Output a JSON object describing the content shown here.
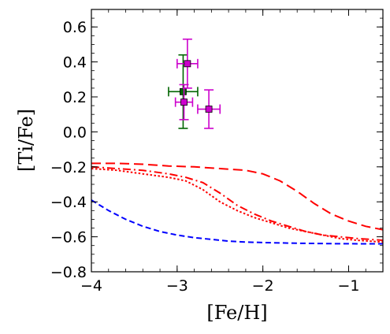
{
  "chart_data": {
    "type": "line",
    "xlabel": "[Fe/H]",
    "ylabel": "[Ti/Fe]",
    "xlim": [
      -4.0,
      -0.6
    ],
    "ylim": [
      -0.8,
      0.7
    ],
    "grid": false,
    "xticks": [
      -4,
      -3,
      -2,
      -1
    ],
    "xtick_labels": [
      "−4",
      "−3",
      "−2",
      "−1"
    ],
    "yticks": [
      0.6,
      0.4,
      0.2,
      0.0,
      -0.2,
      -0.4,
      -0.6,
      -0.8
    ],
    "ytick_labels": [
      "0.6",
      "0.4",
      "0.2",
      "0.0",
      "−0.2",
      "−0.4",
      "−0.6",
      "−0.8"
    ],
    "series": [
      {
        "style": "dashed-long",
        "color": "#ff0000",
        "x": [
          -4.0,
          -3.7,
          -3.4,
          -3.1,
          -2.8,
          -2.5,
          -2.2,
          -2.0,
          -1.8,
          -1.6,
          -1.4,
          -1.2,
          -1.0,
          -0.8,
          -0.6
        ],
        "y": [
          -0.18,
          -0.18,
          -0.185,
          -0.195,
          -0.2,
          -0.21,
          -0.22,
          -0.24,
          -0.28,
          -0.34,
          -0.41,
          -0.47,
          -0.51,
          -0.54,
          -0.56
        ]
      },
      {
        "style": "dash-dot",
        "color": "#ff0000",
        "x": [
          -4.0,
          -3.7,
          -3.4,
          -3.1,
          -2.9,
          -2.7,
          -2.5,
          -2.3,
          -2.1,
          -1.9,
          -1.7,
          -1.5,
          -1.3,
          -1.1,
          -0.9,
          -0.6
        ],
        "y": [
          -0.2,
          -0.21,
          -0.22,
          -0.24,
          -0.26,
          -0.29,
          -0.35,
          -0.42,
          -0.47,
          -0.51,
          -0.54,
          -0.57,
          -0.59,
          -0.6,
          -0.61,
          -0.62
        ]
      },
      {
        "style": "dotted",
        "color": "#ff0000",
        "x": [
          -4.0,
          -3.7,
          -3.4,
          -3.1,
          -2.9,
          -2.7,
          -2.5,
          -2.3,
          -2.1,
          -1.9,
          -1.7,
          -1.5,
          -1.3,
          -1.1,
          -0.9,
          -0.6
        ],
        "y": [
          -0.21,
          -0.22,
          -0.24,
          -0.26,
          -0.28,
          -0.33,
          -0.4,
          -0.45,
          -0.49,
          -0.52,
          -0.55,
          -0.57,
          -0.59,
          -0.61,
          -0.62,
          -0.63
        ]
      },
      {
        "style": "dashed-short",
        "color": "#0000ff",
        "x": [
          -4.0,
          -3.8,
          -3.6,
          -3.4,
          -3.2,
          -3.0,
          -2.8,
          -2.6,
          -2.4,
          -2.2,
          -2.0,
          -1.6,
          -1.2,
          -0.8,
          -0.6
        ],
        "y": [
          -0.39,
          -0.45,
          -0.5,
          -0.54,
          -0.57,
          -0.59,
          -0.605,
          -0.615,
          -0.625,
          -0.63,
          -0.633,
          -0.637,
          -0.639,
          -0.64,
          -0.64
        ]
      }
    ],
    "points": [
      {
        "x": -2.93,
        "y": 0.23,
        "xerr": 0.17,
        "yerr": 0.21,
        "color": "#006400"
      },
      {
        "x": -2.88,
        "y": 0.39,
        "xerr": 0.12,
        "yerr": 0.14,
        "color": "#cc00cc"
      },
      {
        "x": -2.92,
        "y": 0.17,
        "xerr": 0.1,
        "yerr": 0.1,
        "color": "#cc00cc"
      },
      {
        "x": -2.63,
        "y": 0.13,
        "xerr": 0.13,
        "yerr": 0.11,
        "color": "#cc00cc"
      }
    ]
  }
}
